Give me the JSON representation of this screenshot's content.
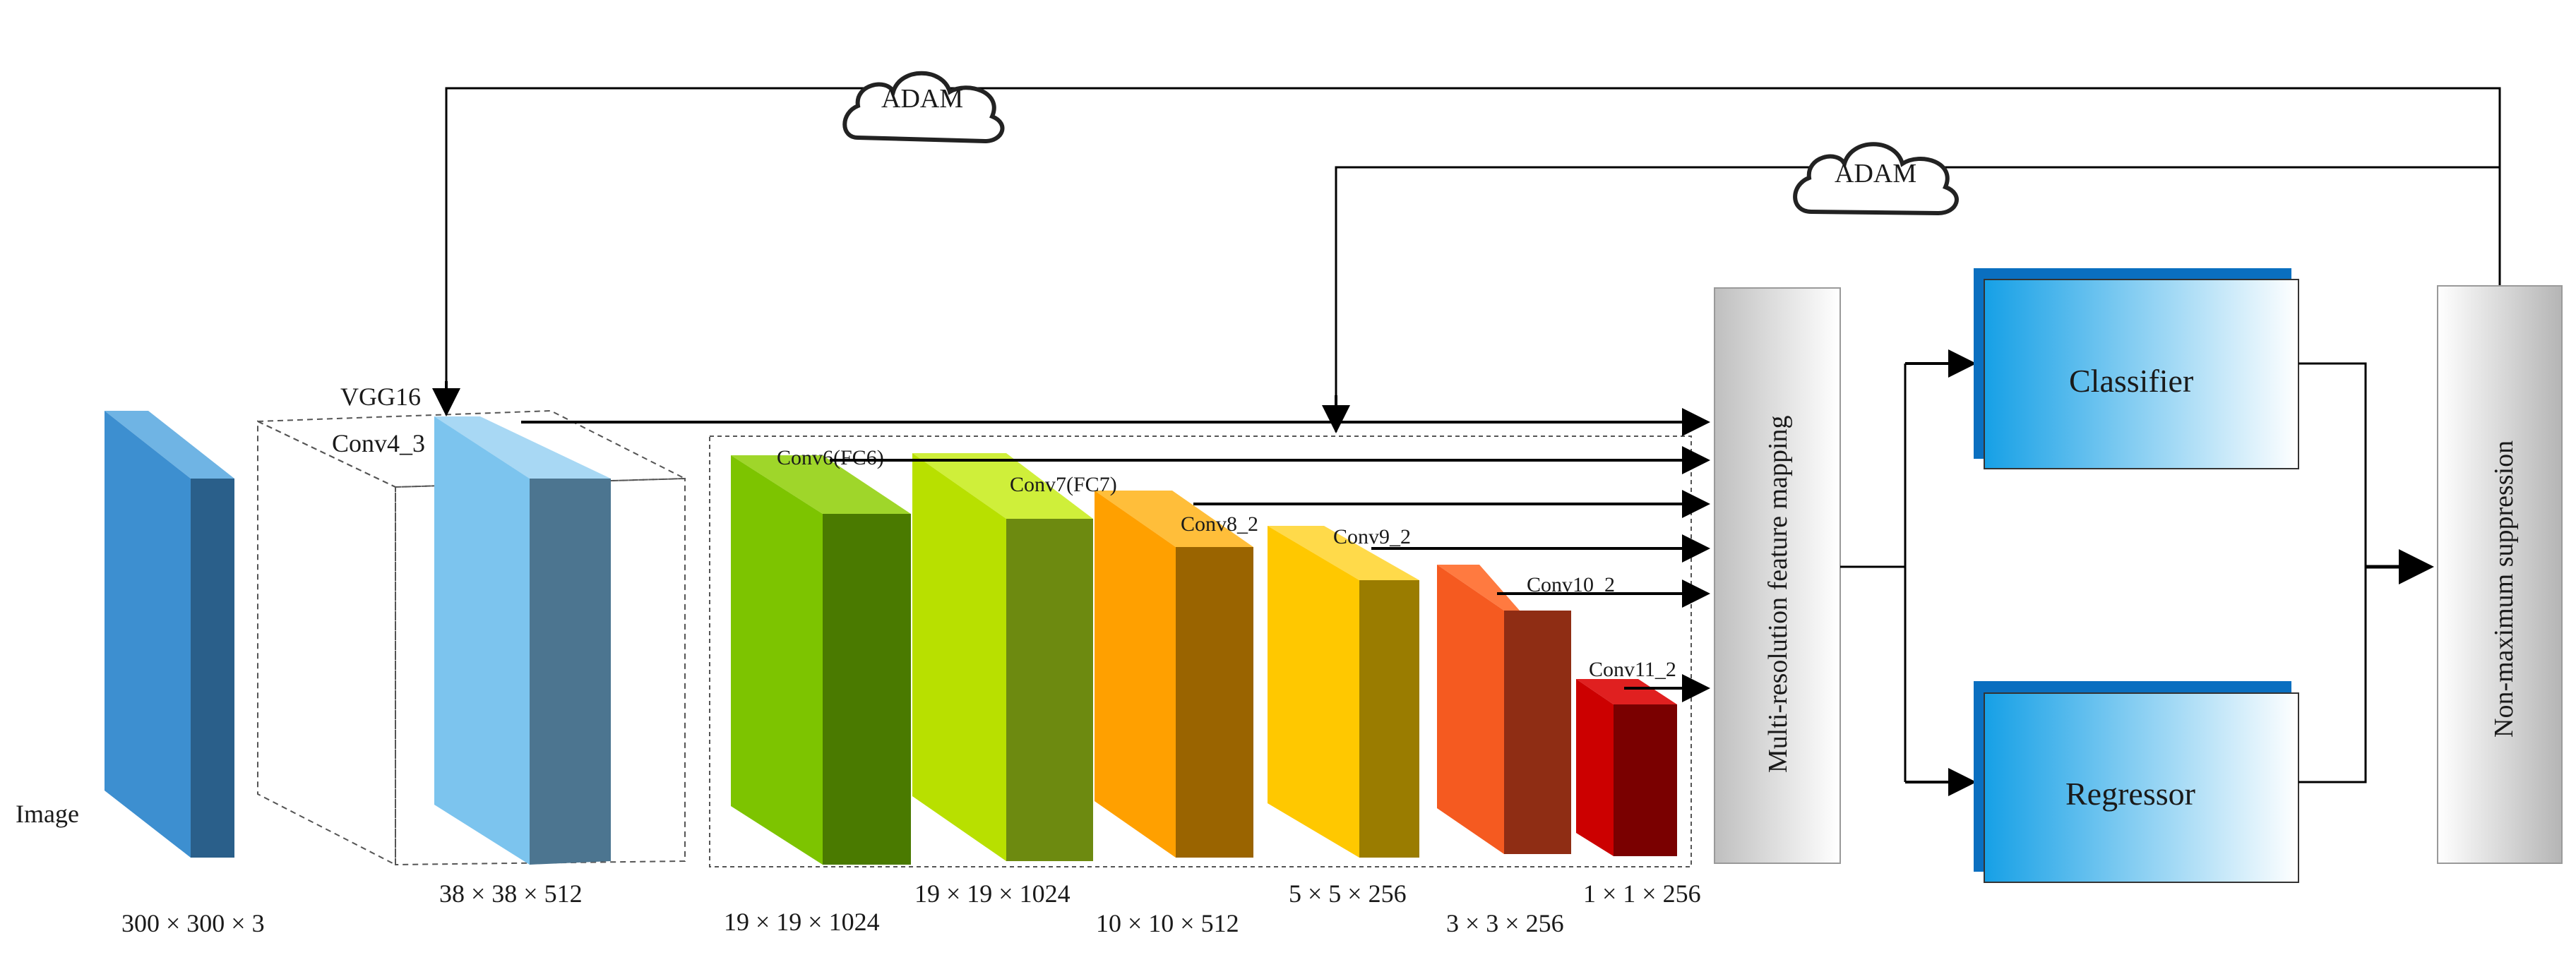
{
  "input": {
    "label": "Image",
    "size": "300 × 300 × 3"
  },
  "vgg": {
    "label": "VGG16",
    "layer_label": "Conv4_3",
    "size": "38 × 38 × 512"
  },
  "layers": [
    {
      "label": "Conv6(FC6)",
      "size": "19 × 19 × 1024",
      "color": "#7dc400"
    },
    {
      "label": "Conv7(FC7)",
      "size": "19 × 19 × 1024",
      "color": "#b8e000"
    },
    {
      "label": "Conv8_2",
      "size": "10 × 10 × 512",
      "color": "#ffa000"
    },
    {
      "label": "Conv9_2",
      "size": "5 × 5 × 256",
      "color": "#ffc800"
    },
    {
      "label": "Conv10_2",
      "size": "3 × 3 × 256",
      "color": "#f55a20"
    },
    {
      "label": "Conv11_2",
      "size": "1 × 1 × 256",
      "color": "#cc0000"
    }
  ],
  "optimizers": [
    {
      "label": "ADAM"
    },
    {
      "label": "ADAM"
    }
  ],
  "mapping_box": {
    "label": "Multi-resolution feature mapping"
  },
  "heads": {
    "classifier": "Classifier",
    "regressor": "Regressor"
  },
  "nms_box": {
    "label": "Non-maximum suppression"
  },
  "colors": {
    "input_block": "#3d8fd0",
    "vgg_block": "#7cc4ee",
    "head_accent": "#0a6fc0"
  }
}
